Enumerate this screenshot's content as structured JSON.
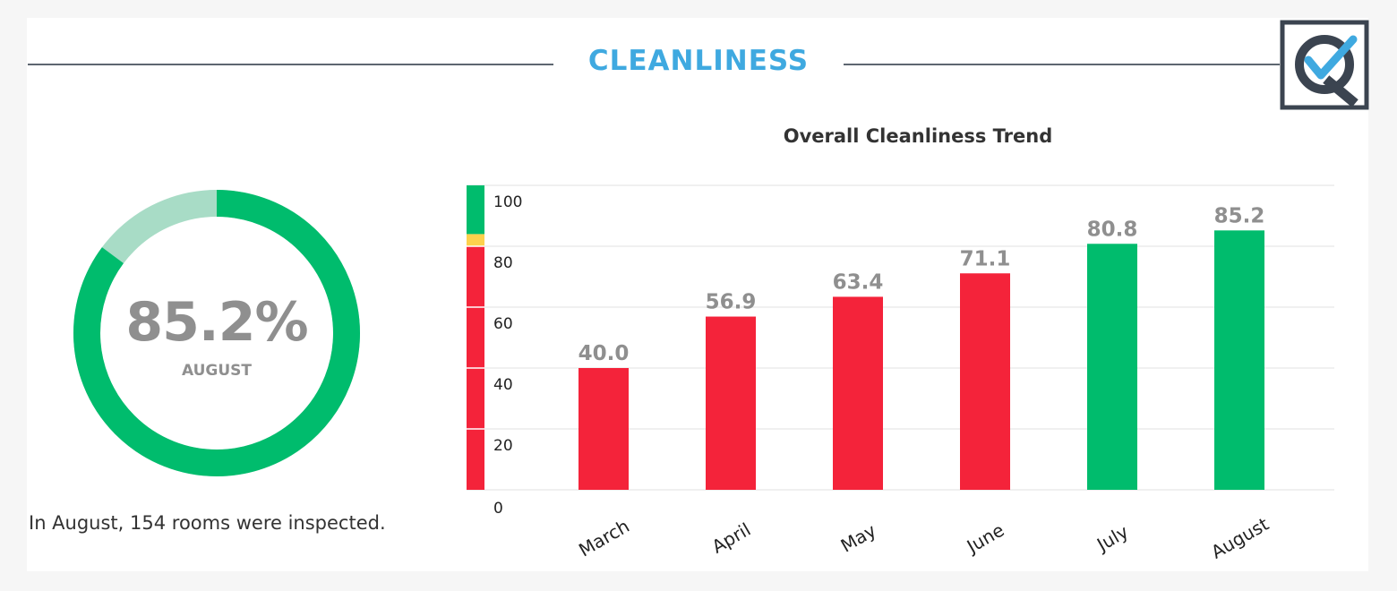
{
  "section": {
    "title": "CLEANLINESS"
  },
  "donut": {
    "value": 85.2,
    "value_label": "85.2%",
    "sublabel": "AUGUST",
    "fill_color": "#00bc6d",
    "remainder_color": "#a8dcc6"
  },
  "summary": "In August, 154 rooms were inspected.",
  "logo": {
    "icon": "q-checkmark-logo",
    "frame_color": "#3b4450",
    "check_color": "#3fa9e0"
  },
  "chart_data": {
    "type": "bar",
    "title": "Overall Cleanliness Trend",
    "categories": [
      "March",
      "April",
      "May",
      "June",
      "July",
      "August"
    ],
    "values": [
      40.0,
      56.9,
      63.4,
      71.1,
      80.8,
      85.2
    ],
    "value_labels": [
      "40.0",
      "56.9",
      "63.4",
      "71.1",
      "80.8",
      "85.2"
    ],
    "bar_colors": [
      "#f4233a",
      "#f4233a",
      "#f4233a",
      "#f4233a",
      "#00bc6d",
      "#00bc6d"
    ],
    "ylim": [
      0,
      100
    ],
    "yticks": [
      0,
      20,
      40,
      60,
      80,
      100
    ],
    "grid": true,
    "color_bands": [
      {
        "from": 0,
        "to": 80,
        "color": "#f4233a"
      },
      {
        "from": 80,
        "to": 84,
        "color": "#fdd14d"
      },
      {
        "from": 84,
        "to": 100,
        "color": "#00bc6d"
      }
    ]
  }
}
